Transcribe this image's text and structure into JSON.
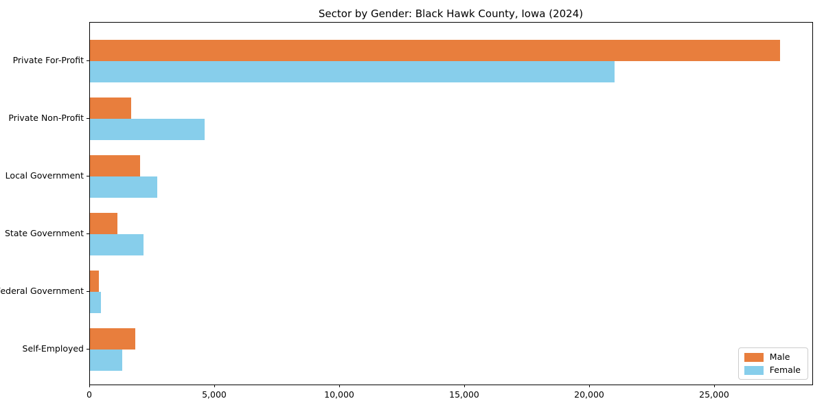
{
  "title": "Sector by Gender: Black Hawk County, Iowa (2024)",
  "chart_data": {
    "type": "bar",
    "orientation": "horizontal",
    "title": "Sector by Gender: Black Hawk County, Iowa (2024)",
    "categories": [
      "Private For-Profit",
      "Private Non-Profit",
      "Local Government",
      "State Government",
      "Federal Government",
      "Self-Employed"
    ],
    "series": [
      {
        "name": "Male",
        "color": "#e87e3d",
        "values": [
          27600,
          1650,
          2000,
          1100,
          350,
          1800
        ]
      },
      {
        "name": "Female",
        "color": "#87ceeb",
        "values": [
          21000,
          4600,
          2700,
          2150,
          450,
          1300
        ]
      }
    ],
    "xlabel": "",
    "ylabel": "",
    "xticks": [
      0,
      5000,
      10000,
      15000,
      20000,
      25000
    ],
    "xticklabels": [
      "0",
      "5,000",
      "10,000",
      "15,000",
      "20,000",
      "25,000"
    ],
    "xlim": [
      0,
      28900
    ],
    "grid": false,
    "legend_position": "lower right",
    "plot_border": true
  },
  "legend": {
    "items": [
      {
        "label": "Male",
        "color": "#e87e3d"
      },
      {
        "label": "Female",
        "color": "#87ceeb"
      }
    ]
  },
  "colors": {
    "male": "#e87e3d",
    "female": "#87ceeb",
    "axis": "#000000",
    "background": "#ffffff",
    "legend_border": "#cccccc"
  }
}
